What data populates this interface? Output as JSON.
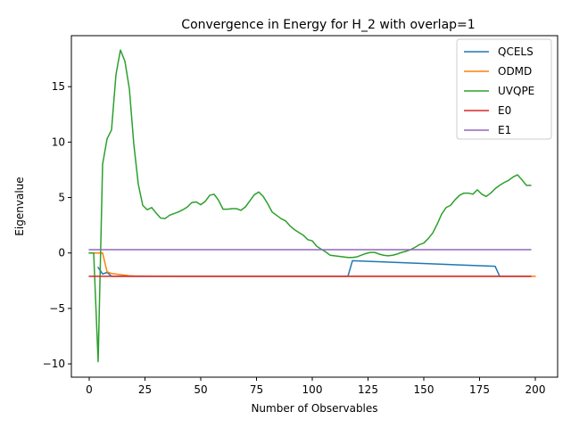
{
  "chart_data": {
    "type": "line",
    "title": "Convergence in Energy for H_2 with overlap=1",
    "xlabel": "Number of Observables",
    "ylabel": "Eigenvalue",
    "xlim": [
      -8,
      210
    ],
    "ylim": [
      -11.2,
      19.6
    ],
    "xticks": [
      0,
      25,
      50,
      75,
      100,
      125,
      150,
      175,
      200
    ],
    "yticks": [
      -10,
      -5,
      0,
      5,
      10,
      15
    ],
    "grid": false,
    "legend_position": "top-right",
    "series": [
      {
        "name": "QCELS",
        "color": "#1f77b4",
        "x": [
          4,
          6,
          8,
          10,
          116,
          118,
          182,
          184,
          198
        ],
        "y": [
          -1.3,
          -1.9,
          -1.75,
          -2.1,
          -2.1,
          -0.7,
          -1.2,
          -2.1,
          -2.1
        ]
      },
      {
        "name": "ODMD",
        "color": "#ff7f0e",
        "x": [
          0,
          2,
          4,
          6,
          8,
          10,
          12,
          14,
          16,
          18,
          20,
          25,
          30,
          40,
          50,
          100,
          150,
          200
        ],
        "y": [
          0.0,
          0.0,
          0.0,
          0.0,
          -1.7,
          -1.85,
          -1.9,
          -1.95,
          -2.0,
          -2.05,
          -2.07,
          -2.08,
          -2.09,
          -2.1,
          -2.1,
          -2.1,
          -2.1,
          -2.1
        ]
      },
      {
        "name": "UVQPE",
        "color": "#2ca02c",
        "x": [
          0,
          2,
          4,
          6,
          8,
          10,
          12,
          14,
          16,
          18,
          20,
          22,
          24,
          26,
          28,
          30,
          32,
          34,
          36,
          38,
          40,
          42,
          44,
          46,
          48,
          50,
          52,
          54,
          56,
          58,
          60,
          62,
          64,
          66,
          68,
          70,
          72,
          74,
          76,
          78,
          80,
          82,
          84,
          86,
          88,
          90,
          92,
          94,
          96,
          98,
          100,
          102,
          104,
          106,
          108,
          110,
          112,
          114,
          116,
          118,
          120,
          122,
          124,
          126,
          128,
          130,
          132,
          134,
          136,
          138,
          140,
          142,
          144,
          146,
          148,
          150,
          152,
          154,
          156,
          158,
          160,
          162,
          164,
          166,
          168,
          170,
          172,
          174,
          176,
          178,
          180,
          182,
          184,
          186,
          188,
          190,
          192,
          194,
          196,
          198
        ],
        "y": [
          0.0,
          0.0,
          -9.8,
          8.0,
          10.3,
          11.1,
          16.1,
          18.3,
          17.3,
          14.8,
          9.8,
          6.2,
          4.3,
          3.9,
          4.1,
          3.6,
          3.15,
          3.1,
          3.4,
          3.55,
          3.7,
          3.9,
          4.15,
          4.55,
          4.6,
          4.35,
          4.65,
          5.2,
          5.3,
          4.75,
          3.95,
          3.95,
          4.0,
          4.0,
          3.85,
          4.15,
          4.7,
          5.25,
          5.5,
          5.1,
          4.45,
          3.7,
          3.4,
          3.1,
          2.9,
          2.45,
          2.1,
          1.85,
          1.6,
          1.2,
          1.1,
          0.6,
          0.35,
          0.1,
          -0.2,
          -0.25,
          -0.3,
          -0.35,
          -0.4,
          -0.4,
          -0.35,
          -0.2,
          -0.05,
          0.05,
          0.05,
          -0.1,
          -0.2,
          -0.25,
          -0.2,
          -0.1,
          0.05,
          0.15,
          0.3,
          0.5,
          0.75,
          0.9,
          1.3,
          1.8,
          2.6,
          3.5,
          4.1,
          4.3,
          4.8,
          5.2,
          5.4,
          5.4,
          5.3,
          5.7,
          5.3,
          5.1,
          5.4,
          5.8,
          6.1,
          6.35,
          6.55,
          6.85,
          7.05,
          6.6,
          6.1,
          6.1
        ]
      },
      {
        "name": "E0",
        "color": "#d62728",
        "x": [
          0,
          198
        ],
        "y": [
          -2.1,
          -2.1
        ]
      },
      {
        "name": "E1",
        "color": "#9467bd",
        "x": [
          0,
          198
        ],
        "y": [
          0.3,
          0.3
        ]
      }
    ]
  }
}
